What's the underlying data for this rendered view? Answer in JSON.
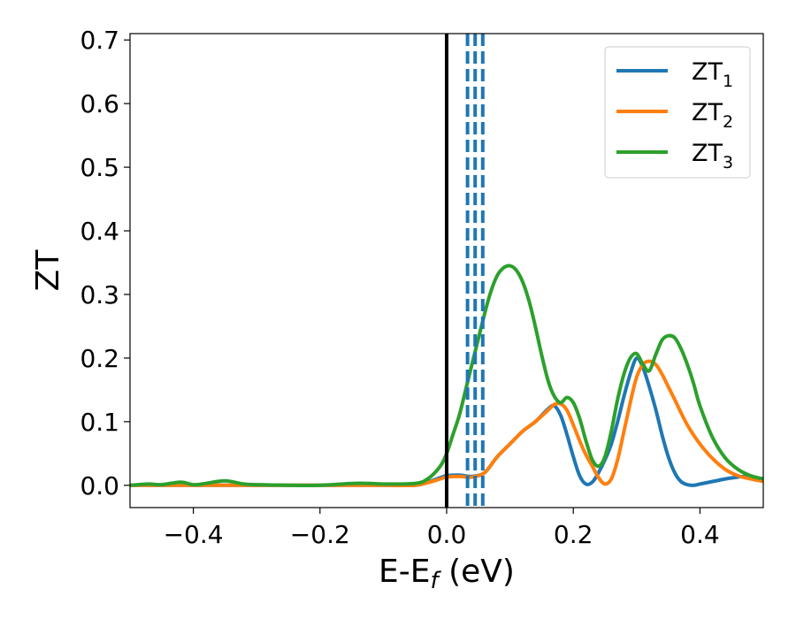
{
  "chart_data": {
    "type": "line",
    "xlabel": "E-E",
    "xlabel_sub": "f",
    "xlabel_unit": " (eV)",
    "ylabel": "ZT",
    "xlim": [
      -0.5,
      0.5
    ],
    "ylim": [
      -0.035,
      0.71
    ],
    "x_ticks": [
      -0.4,
      -0.2,
      0.0,
      0.2,
      0.4
    ],
    "x_tick_labels": [
      "−0.4",
      "−0.2",
      "0.0",
      "0.2",
      "0.4"
    ],
    "y_ticks": [
      0.0,
      0.1,
      0.2,
      0.3,
      0.4,
      0.5,
      0.6,
      0.7
    ],
    "y_tick_labels": [
      "0.0",
      "0.1",
      "0.2",
      "0.3",
      "0.4",
      "0.5",
      "0.6",
      "0.7"
    ],
    "grid": false,
    "legend_position": "top-right",
    "vertical_lines": [
      {
        "x": 0.0,
        "color": "#000000",
        "style": "solid"
      },
      {
        "x": 0.033,
        "color": "#1f77b4",
        "style": "dashed"
      },
      {
        "x": 0.045,
        "color": "#1f77b4",
        "style": "dashed"
      },
      {
        "x": 0.057,
        "color": "#1f77b4",
        "style": "dashed"
      }
    ],
    "series": [
      {
        "name": "ZT",
        "subscript": "1",
        "color": "#1f77b4",
        "x": [
          -0.5,
          -0.45,
          -0.4,
          -0.35,
          -0.3,
          -0.25,
          -0.2,
          -0.15,
          -0.1,
          -0.05,
          -0.03,
          -0.01,
          0.0,
          0.02,
          0.04,
          0.06,
          0.08,
          0.1,
          0.12,
          0.14,
          0.16,
          0.17,
          0.18,
          0.19,
          0.2,
          0.21,
          0.22,
          0.23,
          0.24,
          0.25,
          0.26,
          0.27,
          0.28,
          0.29,
          0.3,
          0.31,
          0.32,
          0.33,
          0.34,
          0.35,
          0.36,
          0.37,
          0.38,
          0.39,
          0.4,
          0.42,
          0.44,
          0.46,
          0.47,
          0.48,
          0.5
        ],
        "y": [
          0.0,
          0.0,
          0.0,
          0.0,
          0.0,
          0.0,
          0.0,
          0.0,
          0.0,
          0.0,
          0.005,
          0.012,
          0.015,
          0.016,
          0.014,
          0.02,
          0.045,
          0.065,
          0.085,
          0.1,
          0.12,
          0.125,
          0.11,
          0.08,
          0.045,
          0.015,
          0.002,
          0.005,
          0.02,
          0.04,
          0.065,
          0.1,
          0.14,
          0.175,
          0.2,
          0.185,
          0.155,
          0.12,
          0.08,
          0.045,
          0.02,
          0.006,
          0.001,
          0.0,
          0.002,
          0.006,
          0.01,
          0.013,
          0.014,
          0.013,
          0.008
        ]
      },
      {
        "name": "ZT",
        "subscript": "2",
        "color": "#ff7f0e",
        "x": [
          -0.5,
          -0.45,
          -0.4,
          -0.35,
          -0.3,
          -0.25,
          -0.2,
          -0.15,
          -0.1,
          -0.05,
          -0.03,
          -0.01,
          0.0,
          0.02,
          0.04,
          0.06,
          0.08,
          0.1,
          0.12,
          0.14,
          0.16,
          0.17,
          0.18,
          0.19,
          0.2,
          0.21,
          0.22,
          0.23,
          0.24,
          0.25,
          0.26,
          0.27,
          0.28,
          0.29,
          0.3,
          0.31,
          0.32,
          0.33,
          0.34,
          0.35,
          0.36,
          0.38,
          0.4,
          0.42,
          0.44,
          0.46,
          0.48,
          0.5
        ],
        "y": [
          0.0,
          0.0,
          0.0,
          0.0,
          0.0,
          0.0,
          0.0,
          0.0,
          0.0,
          0.0,
          0.004,
          0.01,
          0.013,
          0.014,
          0.013,
          0.02,
          0.045,
          0.065,
          0.085,
          0.1,
          0.118,
          0.127,
          0.128,
          0.118,
          0.095,
          0.07,
          0.048,
          0.03,
          0.012,
          0.002,
          0.01,
          0.04,
          0.085,
          0.13,
          0.17,
          0.19,
          0.195,
          0.19,
          0.175,
          0.155,
          0.135,
          0.095,
          0.065,
          0.042,
          0.025,
          0.015,
          0.01,
          0.006
        ]
      },
      {
        "name": "ZT",
        "subscript": "3",
        "color": "#2ca02c",
        "x": [
          -0.5,
          -0.47,
          -0.45,
          -0.42,
          -0.4,
          -0.38,
          -0.35,
          -0.32,
          -0.3,
          -0.25,
          -0.2,
          -0.15,
          -0.12,
          -0.1,
          -0.05,
          -0.03,
          -0.01,
          0.0,
          0.01,
          0.02,
          0.03,
          0.04,
          0.05,
          0.06,
          0.07,
          0.08,
          0.09,
          0.1,
          0.11,
          0.12,
          0.13,
          0.14,
          0.15,
          0.16,
          0.17,
          0.18,
          0.19,
          0.2,
          0.21,
          0.22,
          0.23,
          0.24,
          0.25,
          0.26,
          0.27,
          0.28,
          0.29,
          0.3,
          0.31,
          0.32,
          0.33,
          0.34,
          0.35,
          0.36,
          0.37,
          0.38,
          0.39,
          0.4,
          0.42,
          0.44,
          0.46,
          0.48,
          0.5
        ],
        "y": [
          0.0,
          0.002,
          0.001,
          0.005,
          0.001,
          0.003,
          0.007,
          0.002,
          0.001,
          0.0,
          0.0,
          0.003,
          0.003,
          0.002,
          0.003,
          0.01,
          0.03,
          0.05,
          0.08,
          0.11,
          0.15,
          0.19,
          0.23,
          0.27,
          0.305,
          0.33,
          0.342,
          0.345,
          0.338,
          0.32,
          0.29,
          0.25,
          0.205,
          0.165,
          0.14,
          0.13,
          0.138,
          0.13,
          0.105,
          0.07,
          0.04,
          0.03,
          0.045,
          0.085,
          0.135,
          0.175,
          0.2,
          0.207,
          0.19,
          0.18,
          0.205,
          0.228,
          0.235,
          0.232,
          0.215,
          0.19,
          0.16,
          0.125,
          0.075,
          0.043,
          0.025,
          0.015,
          0.01
        ]
      }
    ]
  }
}
